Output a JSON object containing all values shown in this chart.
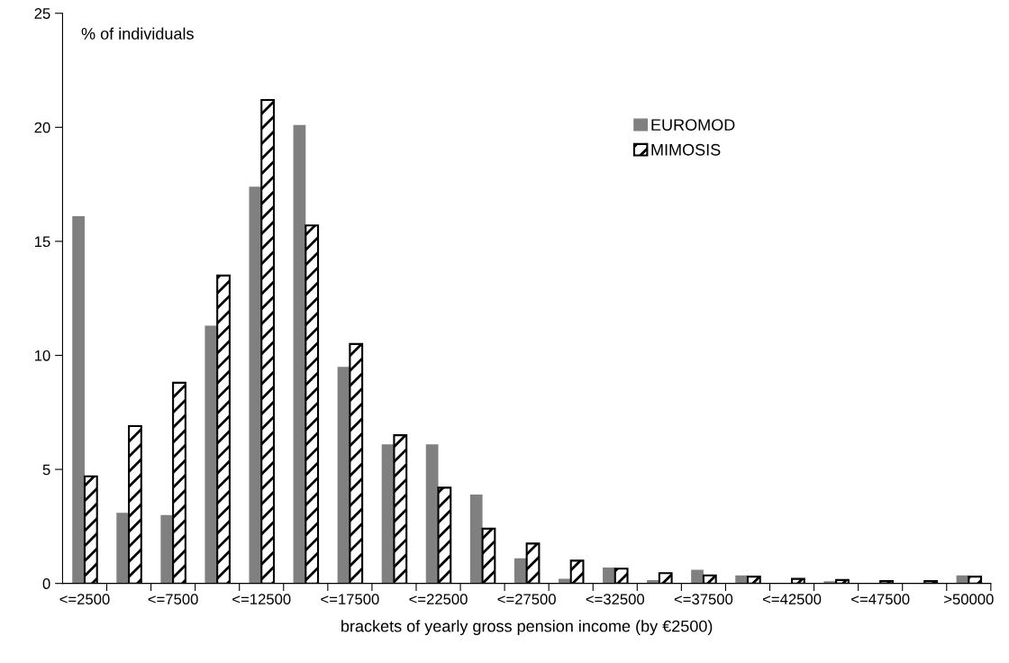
{
  "chart_data": {
    "type": "bar",
    "ylabel": "% of individuals",
    "xlabel": "brackets of yearly gross pension income (by €2500)",
    "categories": [
      "<=2500",
      null,
      "<=7500",
      null,
      "<=12500",
      null,
      "<=17500",
      null,
      "<=22500",
      null,
      "<=27500",
      null,
      "<=32500",
      null,
      "<=37500",
      null,
      "<=42500",
      null,
      "<=47500",
      null,
      ">50000"
    ],
    "series": [
      {
        "name": "EUROMOD",
        "color": "#808080",
        "values": [
          16.1,
          3.1,
          3.0,
          11.3,
          17.4,
          20.1,
          9.5,
          6.1,
          6.1,
          3.9,
          1.1,
          0.2,
          0.7,
          0.15,
          0.6,
          0.35,
          0.0,
          0.1,
          0.0,
          0.0,
          0.35
        ]
      },
      {
        "name": "MIMOSIS",
        "color": "#000000",
        "values": [
          4.7,
          6.9,
          8.8,
          13.5,
          21.2,
          15.7,
          10.5,
          6.5,
          4.2,
          2.4,
          1.75,
          1.0,
          0.65,
          0.45,
          0.35,
          0.3,
          0.2,
          0.15,
          0.1,
          0.1,
          0.3
        ]
      }
    ],
    "ylim": [
      0,
      25
    ],
    "yticks": [
      0,
      5,
      10,
      15,
      20,
      25
    ],
    "grid": false,
    "legend": "right"
  }
}
